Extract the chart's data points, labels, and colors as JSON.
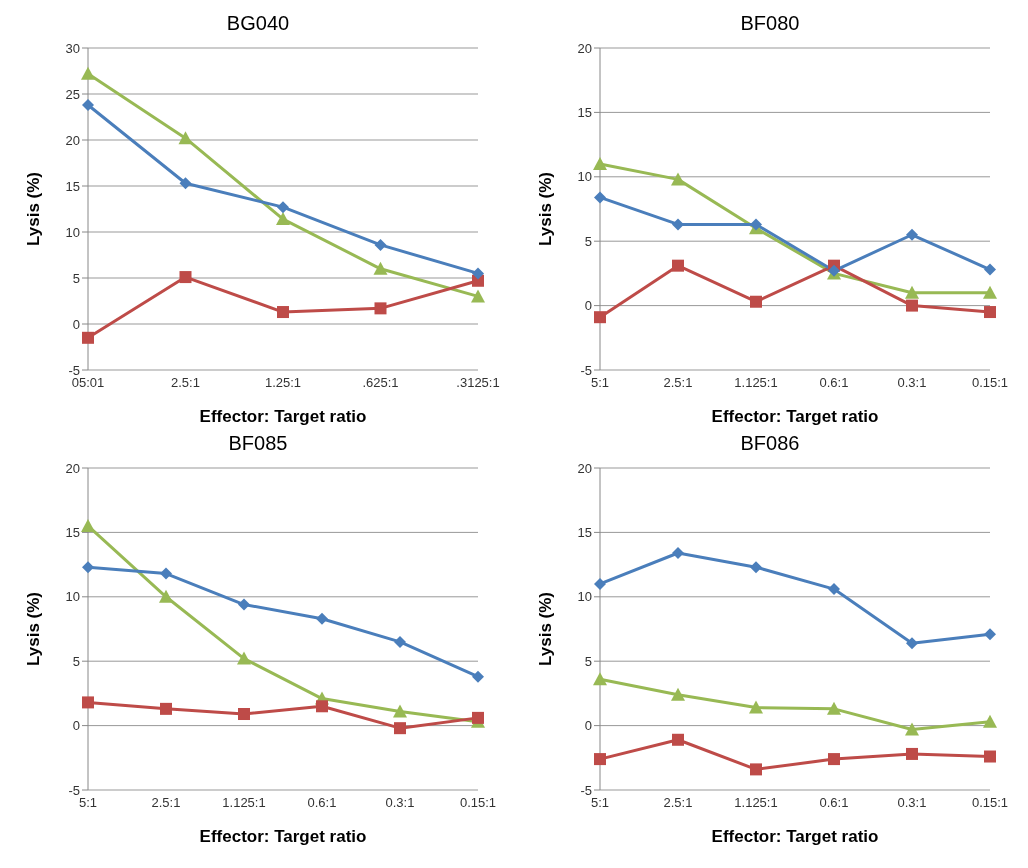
{
  "chart_data": [
    {
      "type": "line",
      "title": "BG040",
      "xlabel": "Effector: Target ratio",
      "ylabel": "Lysis (%)",
      "categories": [
        "05:01",
        "2.5:1",
        "1.25:1",
        ".625:1",
        ".3125:1"
      ],
      "ylim": [
        -5,
        30
      ],
      "yticks": [
        -5,
        0,
        5,
        10,
        15,
        20,
        25,
        30
      ],
      "grid": "y",
      "legend": false,
      "series": [
        {
          "color": "#4a7ebb",
          "marker": "diamond",
          "values": [
            23.8,
            15.3,
            12.7,
            8.6,
            5.5
          ]
        },
        {
          "color": "#be4b48",
          "marker": "square",
          "values": [
            -1.5,
            5.1,
            1.3,
            1.7,
            4.7
          ]
        },
        {
          "color": "#98b954",
          "marker": "triangle",
          "values": [
            27.2,
            20.2,
            11.4,
            6.0,
            3.0
          ]
        }
      ]
    },
    {
      "type": "line",
      "title": "BF080",
      "xlabel": "Effector: Target ratio",
      "ylabel": "Lysis (%)",
      "categories": [
        "5:1",
        "2.5:1",
        "1.125:1",
        "0.6:1",
        "0.3:1",
        "0.15:1"
      ],
      "ylim": [
        -5,
        20
      ],
      "yticks": [
        -5,
        0,
        5,
        10,
        15,
        20
      ],
      "grid": "y",
      "legend": false,
      "series": [
        {
          "color": "#4a7ebb",
          "marker": "diamond",
          "values": [
            8.4,
            6.3,
            6.3,
            2.7,
            5.5,
            2.8
          ]
        },
        {
          "color": "#be4b48",
          "marker": "square",
          "values": [
            -0.9,
            3.1,
            0.3,
            3.1,
            0,
            -0.5
          ]
        },
        {
          "color": "#98b954",
          "marker": "triangle",
          "values": [
            11,
            9.8,
            6.0,
            2.5,
            1.0,
            1.0
          ]
        }
      ]
    },
    {
      "type": "line",
      "title": "BF085",
      "xlabel": "Effector: Target ratio",
      "ylabel": "Lysis (%)",
      "categories": [
        "5:1",
        "2.5:1",
        "1.125:1",
        "0.6:1",
        "0.3:1",
        "0.15:1"
      ],
      "ylim": [
        -5,
        20
      ],
      "yticks": [
        -5,
        0,
        5,
        10,
        15,
        20
      ],
      "grid": "y",
      "legend": false,
      "series": [
        {
          "color": "#4a7ebb",
          "marker": "diamond",
          "values": [
            12.3,
            11.8,
            9.4,
            8.3,
            6.5,
            3.8
          ]
        },
        {
          "color": "#be4b48",
          "marker": "square",
          "values": [
            1.8,
            1.3,
            0.9,
            1.5,
            -0.2,
            0.6
          ]
        },
        {
          "color": "#98b954",
          "marker": "triangle",
          "values": [
            15.5,
            10.0,
            5.2,
            2.1,
            1.1,
            0.3
          ]
        }
      ]
    },
    {
      "type": "line",
      "title": "BF086",
      "xlabel": "Effector: Target ratio",
      "ylabel": "Lysis (%)",
      "categories": [
        "5:1",
        "2.5:1",
        "1.125:1",
        "0.6:1",
        "0.3:1",
        "0.15:1"
      ],
      "ylim": [
        -5,
        20
      ],
      "yticks": [
        -5,
        0,
        5,
        10,
        15,
        20
      ],
      "grid": "y",
      "legend": false,
      "series": [
        {
          "color": "#4a7ebb",
          "marker": "diamond",
          "values": [
            11,
            13.4,
            12.3,
            10.6,
            6.4,
            7.1
          ]
        },
        {
          "color": "#be4b48",
          "marker": "square",
          "values": [
            -2.6,
            -1.1,
            -3.4,
            -2.6,
            -2.2,
            -2.4
          ]
        },
        {
          "color": "#98b954",
          "marker": "triangle",
          "values": [
            3.6,
            2.4,
            1.4,
            1.3,
            -0.3,
            0.3
          ]
        }
      ]
    }
  ]
}
